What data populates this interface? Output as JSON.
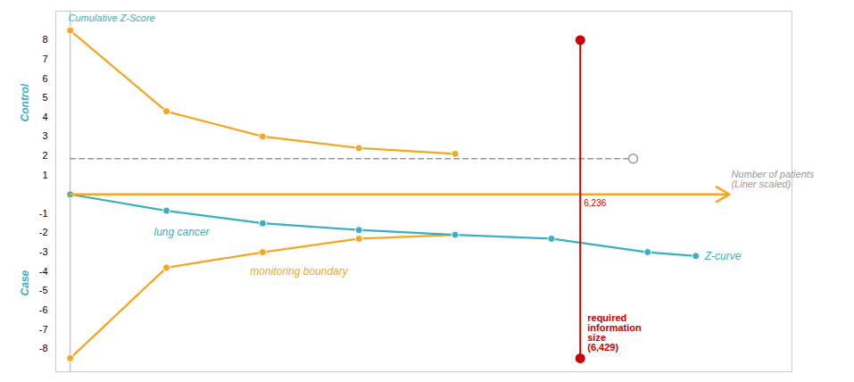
{
  "chart_data": {
    "type": "line",
    "series": [
      {
        "color": "#f5a623",
        "marker": "dot",
        "x": [
          0,
          1,
          2,
          3,
          4
        ],
        "values": [
          8.5,
          4.3,
          3.0,
          2.4,
          2.1
        ]
      },
      {
        "color": "#f5a623",
        "marker": "dot",
        "x": [
          0,
          1,
          2,
          3,
          4
        ],
        "values": [
          -8.5,
          -3.8,
          -3.0,
          -2.3,
          -2.1
        ]
      },
      {
        "color": "#3aafc0",
        "marker": "dot",
        "x": [
          0,
          1,
          2,
          3,
          4,
          5,
          6,
          6.5
        ],
        "values": [
          0.0,
          -0.85,
          -1.5,
          -1.85,
          -2.1,
          -2.3,
          -3.0,
          -3.2
        ]
      }
    ],
    "xlim": [
      -0.15,
      7.5
    ],
    "ylim": [
      -9.2,
      9.5
    ],
    "yticks": [
      -8,
      -7,
      -6,
      -5,
      -4,
      -3,
      -2,
      -1,
      1,
      2,
      3,
      4,
      5,
      6,
      7,
      8
    ],
    "tick_labels": "y",
    "grid": false,
    "axis_line": {
      "x": 0,
      "color": "#999999"
    },
    "arrow": {
      "y": 0.0,
      "x": [
        0.0,
        6.85
      ],
      "color": "#f5a623"
    },
    "reference_line": {
      "y": 1.85,
      "x": [
        0.0,
        5.85
      ],
      "color": "#999999",
      "line_style": "dashed",
      "marker": "open_circle"
    },
    "ris": {
      "x": 5.3,
      "y": [
        -8.5,
        8.0
      ],
      "color": "#cc0000",
      "label": "required\ninformation\nsize\n(6,429)",
      "x_label": "6,236"
    },
    "annotations": {
      "y_title": {
        "text": "Cumulative Z-Score",
        "color": "#3aafc0"
      },
      "upper_side": {
        "text": "Control",
        "color": "#3aafc0"
      },
      "lower_side": {
        "text": "Case",
        "color": "#3aafc0"
      },
      "z_curve_start": {
        "text": "lung cancer",
        "color": "#3aafc0"
      },
      "boundary": {
        "text": "monitoring boundary",
        "color": "#f5a623"
      },
      "z_curve_end": {
        "text": "Z-curve",
        "color": "#3aafc0"
      },
      "x_title": {
        "text": "Number of patients\n(Liner scaled)",
        "color": "#999999"
      }
    }
  }
}
